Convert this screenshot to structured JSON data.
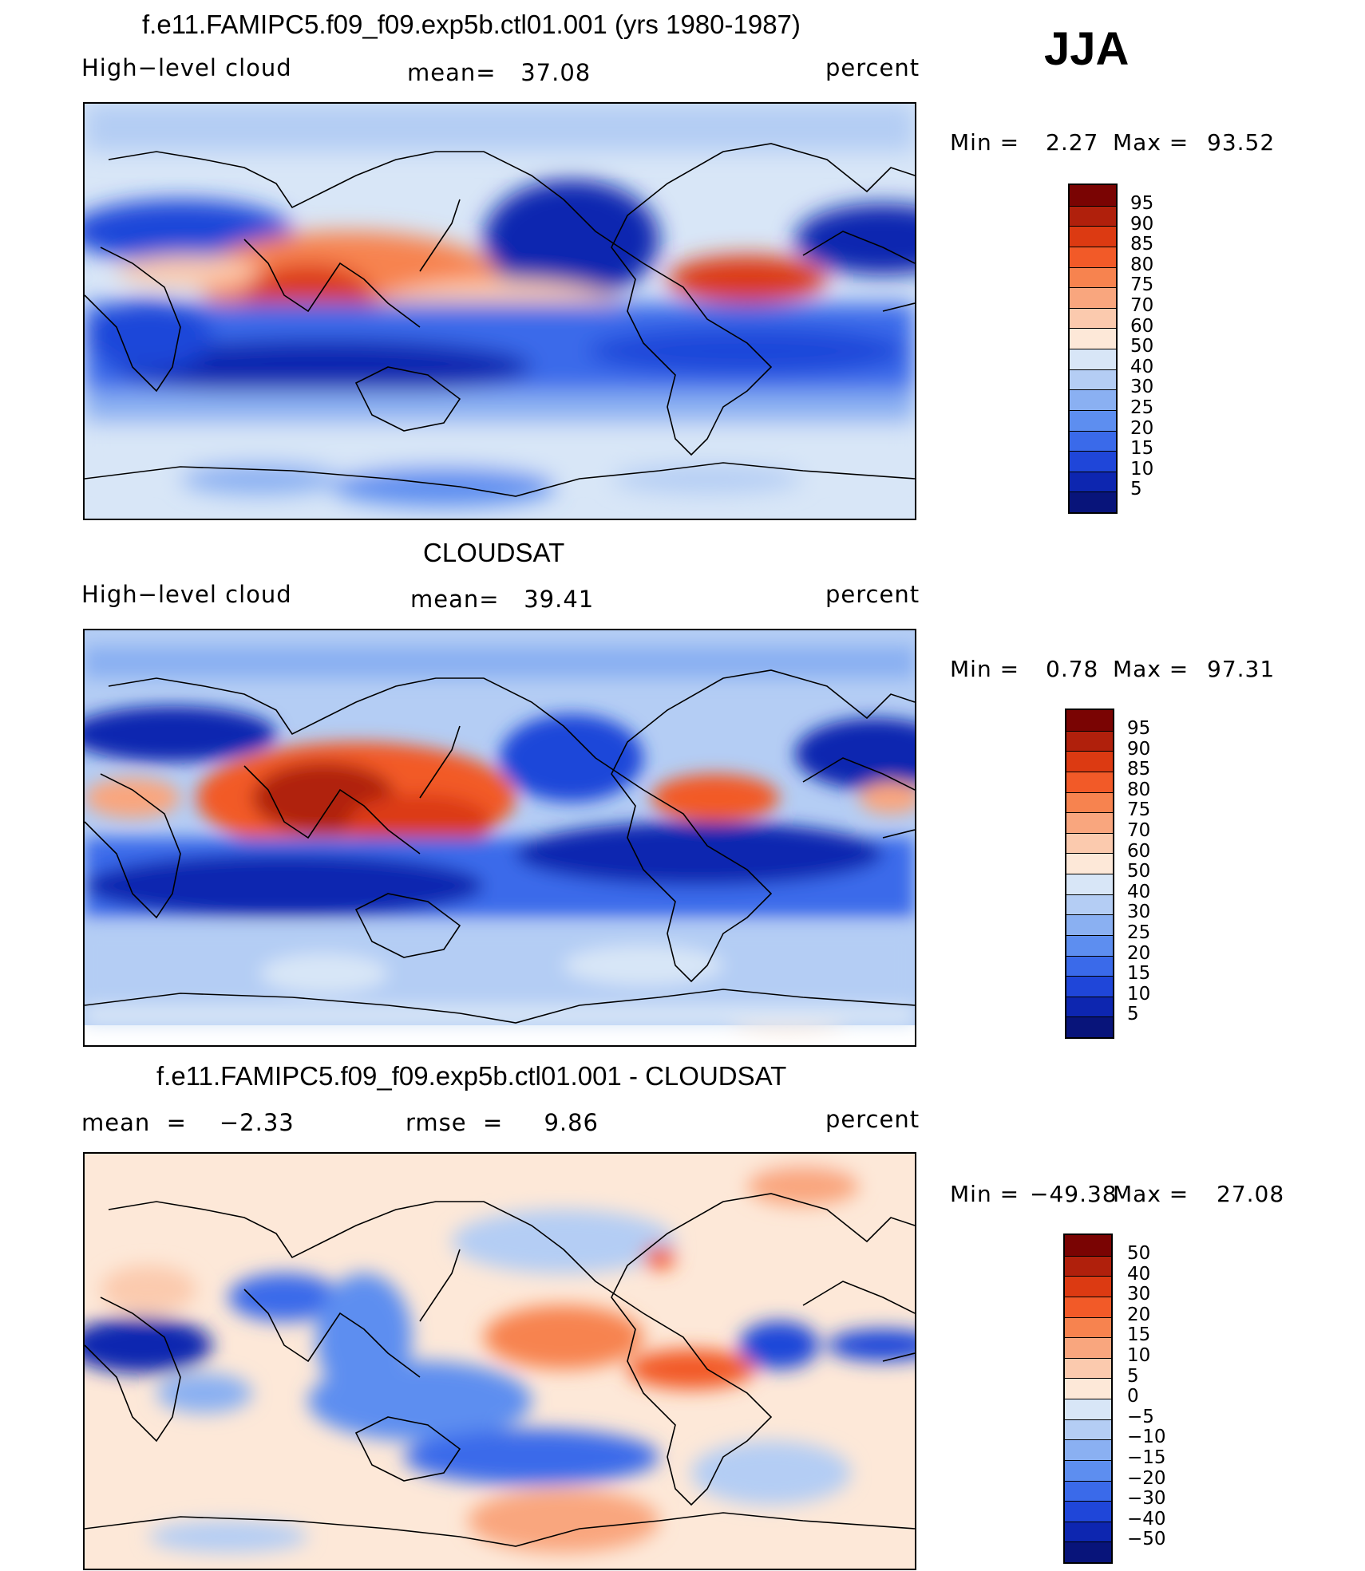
{
  "season": "JJA",
  "panels": [
    {
      "title": "f.e11.FAMIPC5.f09_f09.exp5b.ctl01.001 (yrs 1980-1987)",
      "left_label": "High−level cloud",
      "center_label": "mean=   37.08",
      "right_label": "percent",
      "min_label": "Min  =",
      "min_value": "2.27",
      "max_label": "Max  =",
      "max_value": "93.52",
      "colorbar_ticks": [
        "95",
        "90",
        "85",
        "80",
        "75",
        "70",
        "60",
        "50",
        "40",
        "30",
        "25",
        "20",
        "15",
        "10",
        "5"
      ]
    },
    {
      "title": "CLOUDSAT",
      "left_label": "High−level cloud",
      "center_label": "mean=   39.41",
      "right_label": "percent",
      "min_label": "Min  =",
      "min_value": "0.78",
      "max_label": "Max  =",
      "max_value": "97.31",
      "colorbar_ticks": [
        "95",
        "90",
        "85",
        "80",
        "75",
        "70",
        "60",
        "50",
        "40",
        "30",
        "25",
        "20",
        "15",
        "10",
        "5"
      ]
    },
    {
      "title": "f.e11.FAMIPC5.f09_f09.exp5b.ctl01.001 - CLOUDSAT",
      "left_label": "mean  =    −2.33",
      "center_label": "rmse  =     9.86",
      "right_label": "percent",
      "min_label": "Min  =",
      "min_value": "−49.38",
      "max_label": "Max  =",
      "max_value": "27.08",
      "colorbar_ticks": [
        "50",
        "40",
        "30",
        "20",
        "15",
        "10",
        "5",
        "0",
        "−5",
        "−10",
        "−15",
        "−20",
        "−30",
        "−40",
        "−50"
      ]
    }
  ],
  "colors": {
    "scale": [
      "#7a0403",
      "#b0200c",
      "#dc3a12",
      "#f25a28",
      "#f7834f",
      "#f9a67e",
      "#fbcaae",
      "#fde8d8",
      "#d8e6f7",
      "#b4cdf4",
      "#8ab0f2",
      "#5d8ef0",
      "#3a6aea",
      "#1f46d9",
      "#0d26b0",
      "#08147a"
    ],
    "land_outline": "#000000"
  }
}
